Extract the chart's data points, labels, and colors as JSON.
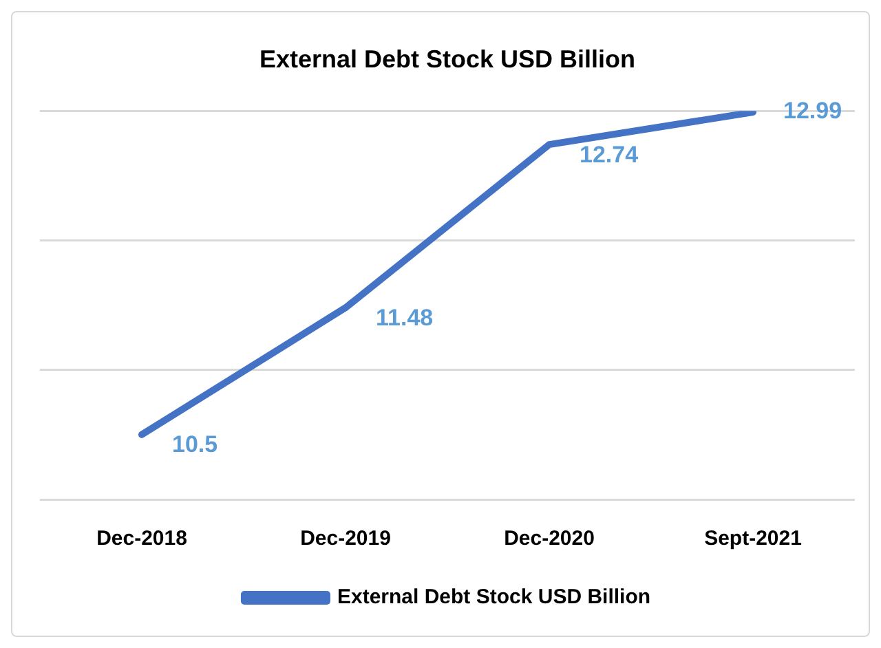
{
  "chart_data": {
    "type": "line",
    "title": "External Debt Stock USD Billion",
    "categories": [
      "Dec-2018",
      "Dec-2019",
      "Dec-2020",
      "Sept-2021"
    ],
    "series": [
      {
        "name": "External Debt Stock USD Billion",
        "color": "#4472c4",
        "values": [
          10.5,
          11.48,
          12.74,
          12.99
        ]
      }
    ],
    "ylim": [
      10,
      13
    ],
    "yticks": [
      {
        "value": 10,
        "label": null
      },
      {
        "value": 11,
        "label": null
      },
      {
        "value": 12,
        "label": null
      },
      {
        "value": 13,
        "label": null
      }
    ],
    "tick_labels": "x",
    "grid": "y",
    "legend": "bottom",
    "data_labels": true,
    "marker": "none",
    "line_style": "solid"
  }
}
